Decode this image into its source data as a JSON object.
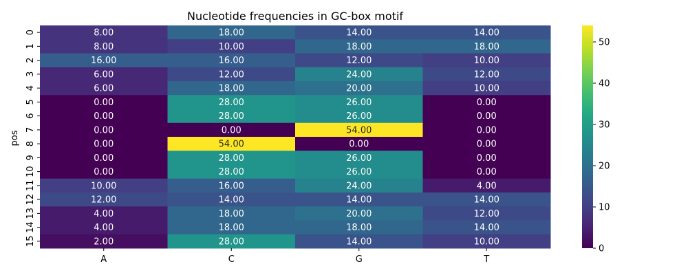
{
  "chart_data": {
    "type": "heatmap",
    "title": "Nucleotide frequencies in GC-box motif",
    "xlabel": "",
    "ylabel": "pos",
    "x_categories": [
      "A",
      "C",
      "G",
      "T"
    ],
    "y_categories": [
      "0",
      "1",
      "2",
      "3",
      "4",
      "5",
      "6",
      "7",
      "8",
      "9",
      "10",
      "11",
      "12",
      "13",
      "14",
      "15"
    ],
    "values": [
      [
        8,
        18,
        14,
        14
      ],
      [
        8,
        10,
        18,
        18
      ],
      [
        16,
        16,
        12,
        10
      ],
      [
        6,
        12,
        24,
        12
      ],
      [
        6,
        18,
        20,
        10
      ],
      [
        0,
        28,
        26,
        0
      ],
      [
        0,
        28,
        26,
        0
      ],
      [
        0,
        0,
        54,
        0
      ],
      [
        0,
        54,
        0,
        0
      ],
      [
        0,
        28,
        26,
        0
      ],
      [
        0,
        28,
        26,
        0
      ],
      [
        10,
        16,
        24,
        4
      ],
      [
        12,
        14,
        14,
        14
      ],
      [
        4,
        18,
        20,
        12
      ],
      [
        4,
        18,
        18,
        14
      ],
      [
        2,
        28,
        14,
        10
      ]
    ],
    "value_format": "0.00",
    "colormap": "viridis",
    "color_range": [
      0,
      54
    ],
    "colorbar_ticks": [
      0,
      10,
      20,
      30,
      40,
      50
    ]
  }
}
